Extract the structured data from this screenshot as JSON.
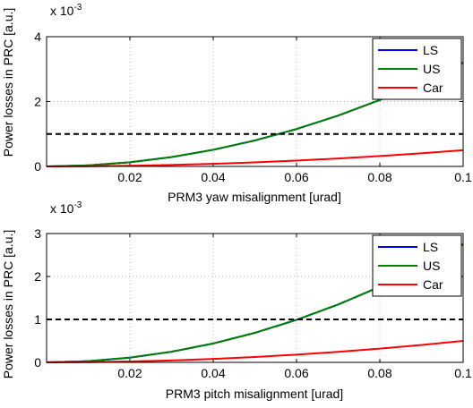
{
  "chart_data": [
    {
      "type": "line",
      "exponent_label": "x 10",
      "exponent_power": "-3",
      "xlabel": "PRM3 yaw misalignment [urad]",
      "ylabel": "Power losses in PRC [a.u.]",
      "xlim": [
        0,
        0.1
      ],
      "ylim": [
        0,
        4
      ],
      "xticks": [
        "0.02",
        "0.04",
        "0.06",
        "0.08",
        "0.1"
      ],
      "yticks": [
        "0",
        "2",
        "4"
      ],
      "grid": true,
      "legend_position": "top-right",
      "threshold": 1,
      "x": [
        0,
        0.01,
        0.02,
        0.03,
        0.04,
        0.05,
        0.06,
        0.07,
        0.08,
        0.09,
        0.1
      ],
      "series": [
        {
          "name": "LS",
          "color": "#0000ff",
          "values": [
            0,
            0.032,
            0.128,
            0.288,
            0.512,
            0.8,
            1.152,
            1.568,
            2.048,
            2.592,
            3.2
          ]
        },
        {
          "name": "US",
          "color": "#008000",
          "values": [
            0,
            0.032,
            0.128,
            0.288,
            0.512,
            0.8,
            1.152,
            1.568,
            2.048,
            2.592,
            3.2
          ]
        },
        {
          "name": "Car",
          "color": "#ff0000",
          "values": [
            0,
            0.005,
            0.02,
            0.045,
            0.08,
            0.125,
            0.18,
            0.245,
            0.32,
            0.405,
            0.5
          ]
        }
      ]
    },
    {
      "type": "line",
      "exponent_label": "x 10",
      "exponent_power": "-3",
      "xlabel": "PRM3 pitch misalignment [urad]",
      "ylabel": "Power losses in PRC [a.u.]",
      "xlim": [
        0,
        0.1
      ],
      "ylim": [
        0,
        3
      ],
      "xticks": [
        "0.02",
        "0.04",
        "0.06",
        "0.08",
        "0.1"
      ],
      "yticks": [
        "0",
        "1",
        "2",
        "3"
      ],
      "grid": true,
      "legend_position": "top-right",
      "threshold": 1,
      "x": [
        0,
        0.01,
        0.02,
        0.03,
        0.04,
        0.05,
        0.06,
        0.07,
        0.08,
        0.09,
        0.1
      ],
      "series": [
        {
          "name": "LS",
          "color": "#0000ff",
          "values": [
            0,
            0.0275,
            0.11,
            0.2475,
            0.44,
            0.6875,
            0.99,
            1.3475,
            1.76,
            2.2275,
            2.75
          ]
        },
        {
          "name": "US",
          "color": "#008000",
          "values": [
            0,
            0.0275,
            0.11,
            0.2475,
            0.44,
            0.6875,
            0.99,
            1.3475,
            1.76,
            2.2275,
            2.75
          ]
        },
        {
          "name": "Car",
          "color": "#ff0000",
          "values": [
            0,
            0.005,
            0.02,
            0.045,
            0.08,
            0.125,
            0.18,
            0.245,
            0.32,
            0.405,
            0.5
          ]
        }
      ]
    }
  ]
}
